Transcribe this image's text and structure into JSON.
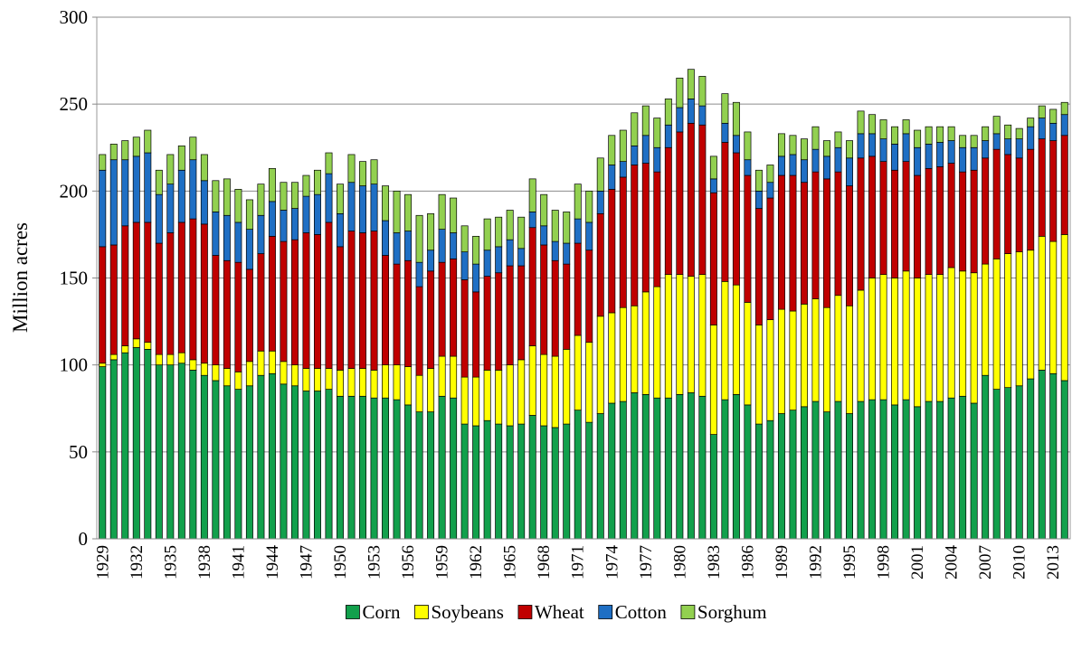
{
  "chart_data": {
    "type": "stacked_bar",
    "y_label": "Million acres",
    "categories": [
      "1929",
      null,
      null,
      "1932",
      null,
      null,
      "1935",
      null,
      null,
      "1938",
      null,
      null,
      "1941",
      null,
      null,
      "1944",
      null,
      null,
      "1947",
      null,
      null,
      "1950",
      null,
      null,
      "1953",
      null,
      null,
      "1956",
      null,
      null,
      "1959",
      null,
      null,
      "1962",
      null,
      null,
      "1965",
      null,
      null,
      "1968",
      null,
      null,
      "1971",
      null,
      null,
      "1974",
      null,
      null,
      "1977",
      null,
      null,
      "1980",
      null,
      null,
      "1983",
      null,
      null,
      "1986",
      null,
      null,
      "1989",
      null,
      null,
      "1992",
      null,
      null,
      "1995",
      null,
      null,
      "1998",
      null,
      null,
      "2001",
      null,
      null,
      "2004",
      null,
      null,
      "2007",
      null,
      null,
      "2010",
      null,
      null,
      "2013",
      null
    ],
    "series": [
      {
        "name": "Corn",
        "color": "#12a04c",
        "values": [
          99,
          103,
          107,
          110,
          109,
          100,
          100,
          101,
          97,
          94,
          91,
          88,
          86,
          88,
          94,
          95,
          89,
          88,
          85,
          85,
          86,
          82,
          82,
          82,
          81,
          81,
          80,
          77,
          73,
          73,
          82,
          81,
          66,
          65,
          68,
          66,
          65,
          66,
          71,
          65,
          64,
          66,
          74,
          67,
          72,
          78,
          79,
          84,
          83,
          81,
          81,
          83,
          84,
          82,
          60,
          80,
          83,
          77,
          66,
          68,
          72,
          74,
          76,
          79,
          73,
          79,
          72,
          79,
          80,
          80,
          77,
          80,
          76,
          79,
          79,
          81,
          82,
          78,
          94,
          86,
          87,
          88,
          92,
          97,
          95,
          91
        ]
      },
      {
        "name": "Soybeans",
        "color": "#ffff00",
        "values": [
          2,
          3,
          4,
          5,
          4,
          6,
          6,
          6,
          6,
          7,
          9,
          10,
          10,
          14,
          14,
          13,
          13,
          12,
          13,
          13,
          12,
          15,
          16,
          16,
          16,
          19,
          20,
          22,
          21,
          25,
          23,
          24,
          27,
          28,
          29,
          31,
          35,
          37,
          40,
          41,
          41,
          43,
          43,
          46,
          56,
          52,
          54,
          50,
          59,
          64,
          71,
          69,
          67,
          70,
          63,
          68,
          63,
          59,
          57,
          58,
          60,
          57,
          59,
          59,
          60,
          61,
          62,
          64,
          70,
          72,
          73,
          74,
          74,
          73,
          73,
          75,
          72,
          75,
          64,
          75,
          77,
          77,
          74,
          77,
          76,
          84
        ]
      },
      {
        "name": "Wheat",
        "color": "#c00000",
        "values": [
          67,
          63,
          69,
          67,
          69,
          64,
          70,
          75,
          81,
          80,
          63,
          62,
          63,
          53,
          56,
          66,
          69,
          72,
          78,
          77,
          84,
          71,
          79,
          78,
          80,
          63,
          58,
          61,
          51,
          56,
          54,
          56,
          56,
          49,
          54,
          56,
          57,
          54,
          68,
          63,
          55,
          49,
          53,
          53,
          59,
          71,
          75,
          81,
          74,
          66,
          73,
          82,
          88,
          86,
          76,
          80,
          76,
          73,
          67,
          70,
          77,
          78,
          70,
          73,
          74,
          71,
          69,
          76,
          70,
          65,
          62,
          63,
          59,
          61,
          62,
          60,
          57,
          59,
          61,
          63,
          57,
          54,
          58,
          56,
          58,
          57
        ]
      },
      {
        "name": "Cotton",
        "color": "#1f6fc4",
        "values": [
          44,
          49,
          38,
          38,
          40,
          28,
          28,
          30,
          34,
          25,
          25,
          26,
          23,
          23,
          22,
          20,
          18,
          18,
          21,
          23,
          28,
          19,
          28,
          27,
          27,
          20,
          18,
          17,
          14,
          12,
          19,
          15,
          16,
          16,
          15,
          15,
          15,
          10,
          9,
          11,
          11,
          12,
          14,
          16,
          13,
          14,
          9,
          11,
          16,
          14,
          13,
          14,
          14,
          11,
          8,
          11,
          10,
          9,
          10,
          9,
          11,
          12,
          13,
          13,
          13,
          14,
          16,
          14,
          13,
          13,
          15,
          16,
          16,
          14,
          14,
          13,
          14,
          13,
          10,
          9,
          9,
          11,
          13,
          12,
          10,
          12
        ]
      },
      {
        "name": "Sorghum",
        "color": "#92d050",
        "values": [
          9,
          9,
          11,
          11,
          13,
          14,
          17,
          14,
          13,
          15,
          18,
          21,
          19,
          17,
          18,
          19,
          16,
          15,
          12,
          14,
          12,
          17,
          16,
          14,
          14,
          20,
          24,
          21,
          27,
          21,
          20,
          20,
          15,
          16,
          18,
          17,
          17,
          18,
          19,
          18,
          18,
          18,
          20,
          18,
          19,
          17,
          18,
          19,
          17,
          17,
          15,
          17,
          17,
          17,
          13,
          17,
          19,
          16,
          12,
          10,
          13,
          11,
          12,
          13,
          9,
          9,
          10,
          13,
          11,
          11,
          10,
          8,
          10,
          10,
          9,
          8,
          7,
          7,
          8,
          10,
          8,
          6,
          5,
          7,
          8,
          7
        ]
      }
    ],
    "ylim": [
      0,
      300
    ],
    "yticks": [
      0,
      50,
      100,
      150,
      200,
      250,
      300
    ],
    "grid": true,
    "legend": "bottom"
  }
}
